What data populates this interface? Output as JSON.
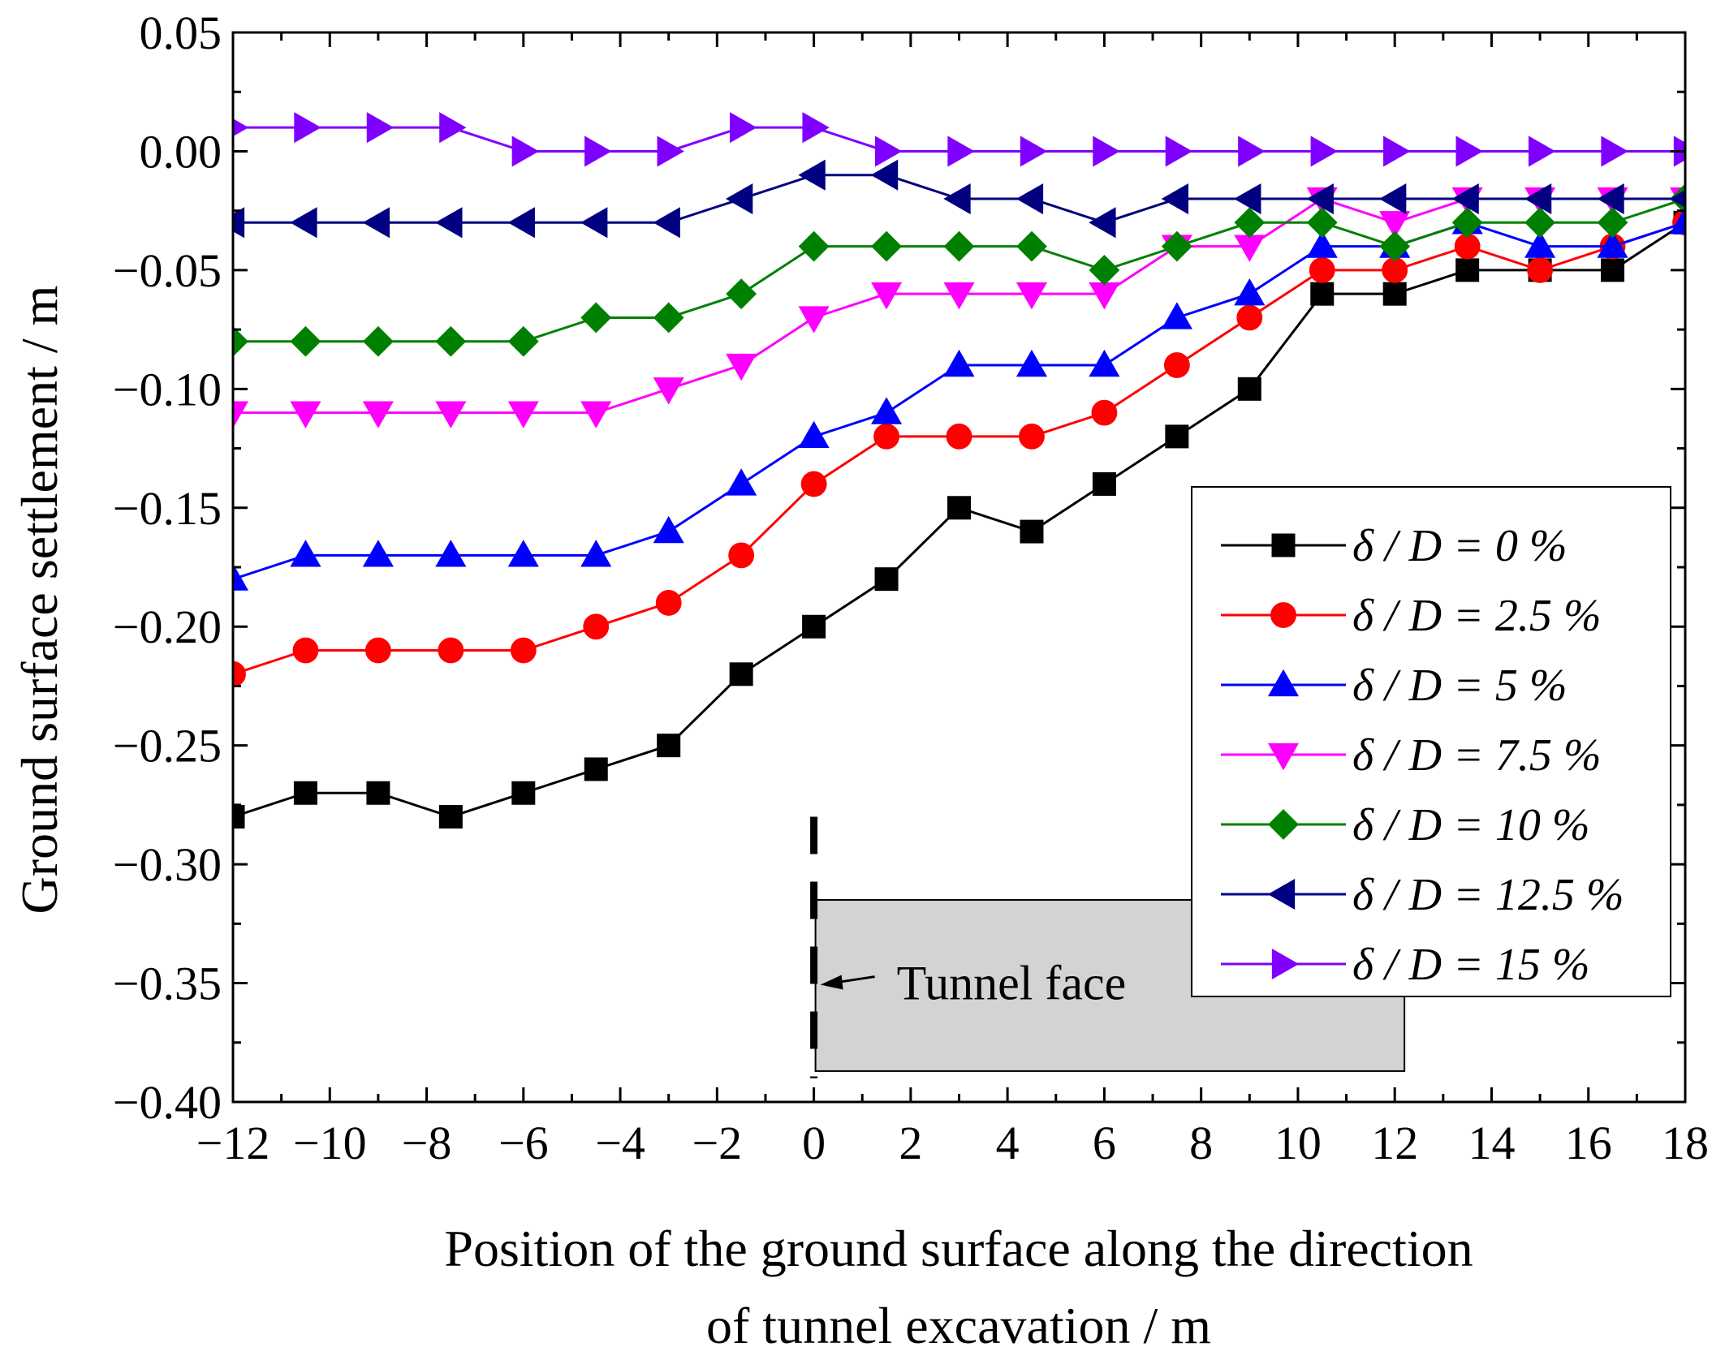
{
  "chart_data": {
    "type": "line",
    "title": "",
    "xlabel_line1": "Position of the ground surface along the direction",
    "xlabel_line2": "of tunnel excavation / m",
    "ylabel": "Ground surface settlement / m",
    "xlim": [
      -12,
      18
    ],
    "ylim": [
      -0.4,
      0.05
    ],
    "x_ticks": [
      -12,
      -10,
      -8,
      -6,
      -4,
      -2,
      0,
      2,
      4,
      6,
      8,
      10,
      12,
      14,
      16,
      18
    ],
    "x_tick_labels": [
      "−12",
      "−10",
      "−8",
      "−6",
      "−4",
      "−2",
      "0",
      "2",
      "4",
      "6",
      "8",
      "10",
      "12",
      "14",
      "16",
      "18"
    ],
    "y_ticks": [
      0.05,
      0.0,
      -0.05,
      -0.1,
      -0.15,
      -0.2,
      -0.25,
      -0.3,
      -0.35,
      -0.4
    ],
    "y_tick_labels": [
      "0.05",
      "0.00",
      "−0.05",
      "−0.10",
      "−0.15",
      "−0.20",
      "−0.25",
      "−0.30",
      "−0.35",
      "−0.40"
    ],
    "legend_position": "right",
    "x": [
      -12,
      -10.5,
      -9,
      -7.5,
      -6,
      -4.5,
      -3,
      -1.5,
      0,
      1.5,
      3,
      4.5,
      6,
      7.5,
      9,
      10.5,
      12,
      13.5,
      15,
      16.5,
      18
    ],
    "series": [
      {
        "name": "δ / D = 0 %",
        "color": "#000000",
        "marker": "square",
        "values": [
          -0.28,
          -0.27,
          -0.27,
          -0.28,
          -0.27,
          -0.26,
          -0.25,
          -0.22,
          -0.2,
          -0.18,
          -0.15,
          -0.16,
          -0.14,
          -0.12,
          -0.1,
          -0.06,
          -0.06,
          -0.05,
          -0.05,
          -0.05,
          -0.03
        ]
      },
      {
        "name": "δ / D = 2.5 %",
        "color": "#ff0000",
        "marker": "circle",
        "values": [
          -0.22,
          -0.21,
          -0.21,
          -0.21,
          -0.21,
          -0.2,
          -0.19,
          -0.17,
          -0.14,
          -0.12,
          -0.12,
          -0.12,
          -0.11,
          -0.09,
          -0.07,
          -0.05,
          -0.05,
          -0.04,
          -0.05,
          -0.04,
          -0.03
        ]
      },
      {
        "name": "δ / D = 5 %",
        "color": "#0000ff",
        "marker": "triangle-up",
        "values": [
          -0.18,
          -0.17,
          -0.17,
          -0.17,
          -0.17,
          -0.17,
          -0.16,
          -0.14,
          -0.12,
          -0.11,
          -0.09,
          -0.09,
          -0.09,
          -0.07,
          -0.06,
          -0.04,
          -0.04,
          -0.03,
          -0.04,
          -0.04,
          -0.03
        ]
      },
      {
        "name": "δ / D = 7.5 %",
        "color": "#ff00ff",
        "marker": "triangle-down",
        "values": [
          -0.11,
          -0.11,
          -0.11,
          -0.11,
          -0.11,
          -0.11,
          -0.1,
          -0.09,
          -0.07,
          -0.06,
          -0.06,
          -0.06,
          -0.06,
          -0.04,
          -0.04,
          -0.02,
          -0.03,
          -0.02,
          -0.02,
          -0.02,
          -0.02
        ]
      },
      {
        "name": "δ / D = 10 %",
        "color": "#008000",
        "marker": "diamond",
        "values": [
          -0.08,
          -0.08,
          -0.08,
          -0.08,
          -0.08,
          -0.07,
          -0.07,
          -0.06,
          -0.04,
          -0.04,
          -0.04,
          -0.04,
          -0.05,
          -0.04,
          -0.03,
          -0.03,
          -0.04,
          -0.03,
          -0.03,
          -0.03,
          -0.02
        ]
      },
      {
        "name": "δ / D = 12.5 %",
        "color": "#000080",
        "marker": "triangle-left",
        "values": [
          -0.03,
          -0.03,
          -0.03,
          -0.03,
          -0.03,
          -0.03,
          -0.03,
          -0.02,
          -0.01,
          -0.01,
          -0.02,
          -0.02,
          -0.03,
          -0.02,
          -0.02,
          -0.02,
          -0.02,
          -0.02,
          -0.02,
          -0.02,
          -0.02
        ]
      },
      {
        "name": "δ / D = 15 %",
        "color": "#8000ff",
        "marker": "triangle-right",
        "values": [
          0.01,
          0.01,
          0.01,
          0.01,
          0.0,
          0.0,
          0.0,
          0.01,
          0.01,
          0.0,
          0.0,
          0.0,
          0.0,
          0.0,
          0.0,
          0.0,
          0.0,
          0.0,
          0.0,
          0.0,
          0.0
        ]
      }
    ],
    "annotation": {
      "label": "Tunnel face",
      "x": 0,
      "box_x_range": [
        0,
        12.2
      ],
      "box_y_range": [
        -0.387,
        -0.315
      ],
      "dash_y_range": [
        -0.28,
        -0.39
      ],
      "arrow_y": -0.35
    }
  }
}
